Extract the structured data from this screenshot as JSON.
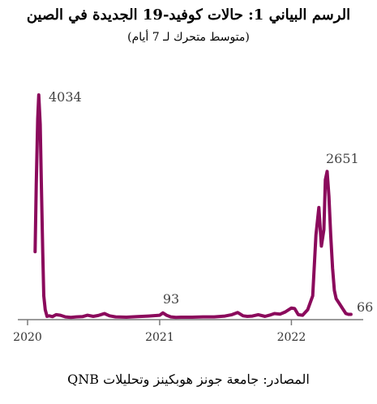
{
  "chart_data": {
    "type": "line",
    "title": "الرسم البياني 1: حالات كوفيد-19 الجديدة في الصين",
    "subtitle": "(متوسط متحرك لـ 7 أيام)",
    "source": "المصادر: جامعة جونز هوبكينز وتحليلات QNB",
    "x_ticks": [
      "2020",
      "2021",
      "2022"
    ],
    "line_color": "#8B0A5C",
    "axis_color": "#7a7a7a",
    "x": [
      "2020-01-22",
      "2020-01-25",
      "2020-01-29",
      "2020-02-01",
      "2020-02-05",
      "2020-02-08",
      "2020-02-12",
      "2020-02-15",
      "2020-02-19",
      "2020-02-24",
      "2020-03-01",
      "2020-03-10",
      "2020-03-20",
      "2020-04-01",
      "2020-04-15",
      "2020-04-30",
      "2020-05-15",
      "2020-06-01",
      "2020-06-15",
      "2020-07-01",
      "2020-07-15",
      "2020-08-01",
      "2020-08-15",
      "2020-09-01",
      "2020-10-01",
      "2020-11-01",
      "2020-12-01",
      "2021-01-01",
      "2021-01-10",
      "2021-01-20",
      "2021-02-01",
      "2021-02-15",
      "2021-03-01",
      "2021-04-01",
      "2021-05-01",
      "2021-06-01",
      "2021-07-01",
      "2021-07-20",
      "2021-08-05",
      "2021-08-20",
      "2021-09-01",
      "2021-09-15",
      "2021-10-01",
      "2021-10-20",
      "2021-11-01",
      "2021-11-15",
      "2021-12-01",
      "2021-12-15",
      "2022-01-01",
      "2022-01-10",
      "2022-01-20",
      "2022-02-01",
      "2022-02-15",
      "2022-03-01",
      "2022-03-10",
      "2022-03-18",
      "2022-03-25",
      "2022-04-01",
      "2022-04-05",
      "2022-04-10",
      "2022-04-15",
      "2022-04-20",
      "2022-04-25",
      "2022-04-30",
      "2022-05-05",
      "2022-05-15",
      "2022-05-25",
      "2022-06-01",
      "2022-06-08",
      "2022-06-15"
    ],
    "y": [
      1200,
      2400,
      3600,
      4034,
      3500,
      2500,
      1200,
      400,
      150,
      30,
      40,
      25,
      60,
      50,
      20,
      10,
      20,
      25,
      50,
      30,
      45,
      80,
      40,
      20,
      15,
      25,
      35,
      50,
      93,
      50,
      20,
      10,
      15,
      15,
      20,
      20,
      35,
      60,
      100,
      40,
      30,
      35,
      60,
      30,
      50,
      80,
      70,
      110,
      180,
      170,
      60,
      50,
      150,
      400,
      1500,
      2000,
      1300,
      1600,
      2500,
      2651,
      2200,
      1500,
      900,
      500,
      350,
      250,
      150,
      80,
      66,
      66
    ],
    "ylim": [
      0,
      4200
    ],
    "annotations": [
      {
        "text": "4034"
      },
      {
        "text": "93"
      },
      {
        "text": "2651"
      },
      {
        "text": "66"
      }
    ]
  }
}
